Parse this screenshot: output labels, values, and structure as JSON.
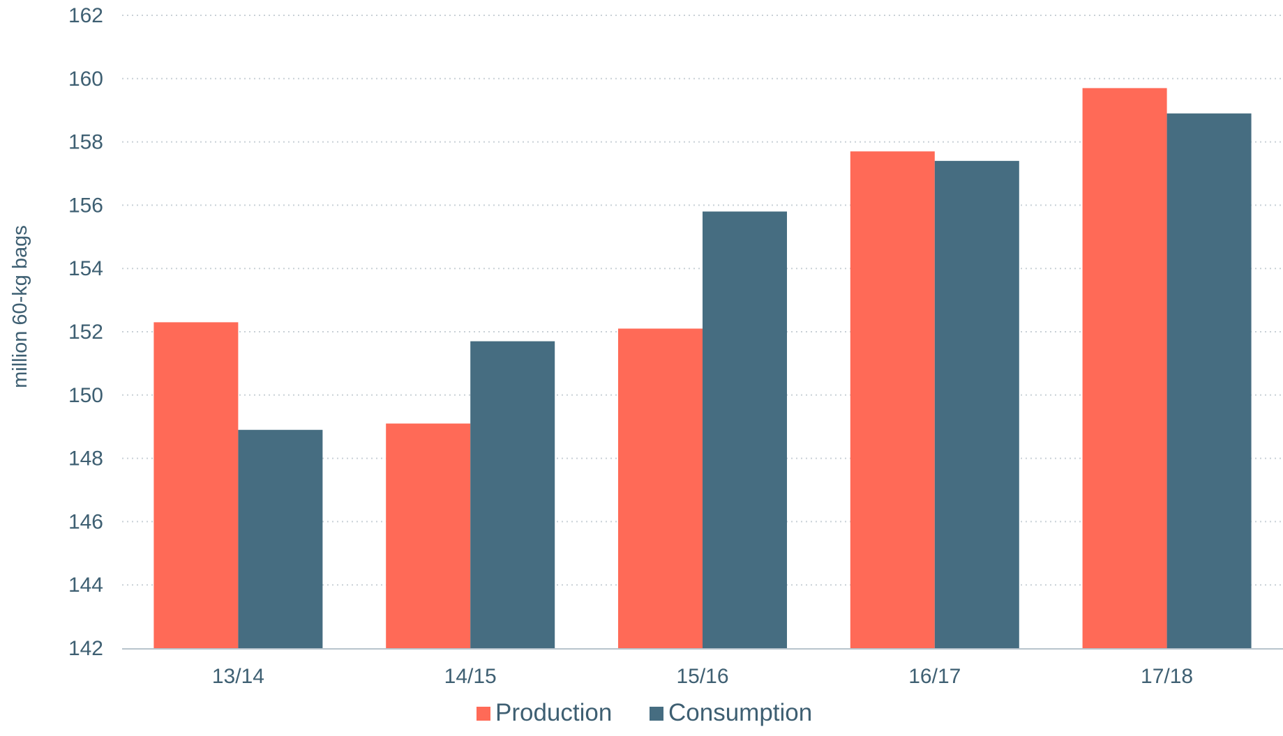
{
  "chart_data": {
    "type": "bar",
    "categories": [
      "13/14",
      "14/15",
      "15/16",
      "16/17",
      "17/18"
    ],
    "series": [
      {
        "name": "Production",
        "values": [
          152.3,
          149.1,
          152.1,
          157.7,
          159.7
        ],
        "color": "#ff6a57"
      },
      {
        "name": "Consumption",
        "values": [
          148.9,
          151.7,
          155.8,
          157.4,
          158.9
        ],
        "color": "#466d81"
      }
    ],
    "title": "",
    "xlabel": "",
    "ylabel": "million 60-kg bags",
    "ylim": [
      142,
      162
    ],
    "yticks": [
      "142",
      "144",
      "146",
      "148",
      "150",
      "152",
      "154",
      "156",
      "158",
      "160",
      "162"
    ],
    "grid": true,
    "legend_position": "bottom-center",
    "colors": {
      "text": "#3e5f72",
      "grid": "#c8d0d6",
      "axis": "#b8c4cc"
    }
  }
}
